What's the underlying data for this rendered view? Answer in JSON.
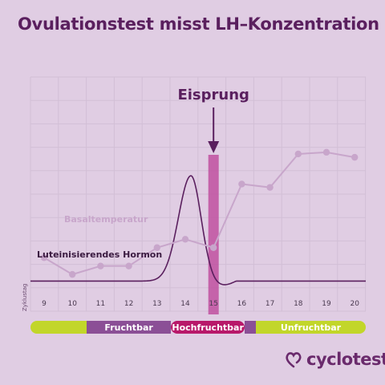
{
  "title": "Ovulationstest misst LH–Konzentration",
  "colors": {
    "background": "#e0cde3",
    "title": "#5a1f5e",
    "grid": "#d2bfd6",
    "temperature": "#c8a6cb",
    "lh_curve": "#5a1f5e",
    "ovulation_bar": "#c050a0",
    "fertile": "#8b4f96",
    "peak_fertile": "#b8186a",
    "infertile": "#c2d62a"
  },
  "chart_data": {
    "type": "line",
    "title": "Ovulationstest misst LH–Konzentration",
    "xlabel": "Zyklustag",
    "x": [
      9,
      10,
      11,
      12,
      13,
      14,
      15,
      16,
      17,
      18,
      19,
      20
    ],
    "series": [
      {
        "name": "Basaltemperatur",
        "kind": "line-with-markers",
        "values": [
          3.2,
          2.2,
          2.7,
          2.7,
          3.8,
          4.3,
          3.8,
          7.6,
          7.4,
          9.4,
          9.5,
          9.2
        ]
      },
      {
        "name": "Luteinisierendes Hormon",
        "kind": "smooth-curve",
        "baseline": 1.8,
        "peak_day": 14.2,
        "peak_value": 8.1,
        "values": [
          1.8,
          1.8,
          1.8,
          1.8,
          2.3,
          7.5,
          1.9,
          1.8,
          1.8,
          1.8,
          1.8,
          1.8
        ]
      }
    ],
    "annotations": [
      {
        "label": "Eisprung",
        "day": 15
      }
    ],
    "ylim": [
      0,
      14
    ],
    "grid": true,
    "legend": "inline-labels"
  },
  "phases": [
    {
      "label": "",
      "from_day": 8.5,
      "to_day": 10.5,
      "color": "#c2d62a"
    },
    {
      "label": "Fruchtbar",
      "from_day": 10.5,
      "to_day": 13.5,
      "color": "#8b4f96"
    },
    {
      "label": "Hochfruchtbar",
      "from_day": 13.5,
      "to_day": 16.1,
      "color": "#b8186a"
    },
    {
      "label": "",
      "from_day": 16.1,
      "to_day": 16.5,
      "color": "#8b4f96"
    },
    {
      "label": "Unfruchtbar",
      "from_day": 16.5,
      "to_day": 20.5,
      "color": "#c2d62a"
    }
  ],
  "brand": {
    "name": "cyclotest",
    "icon": "cyclotest-logo-icon"
  }
}
